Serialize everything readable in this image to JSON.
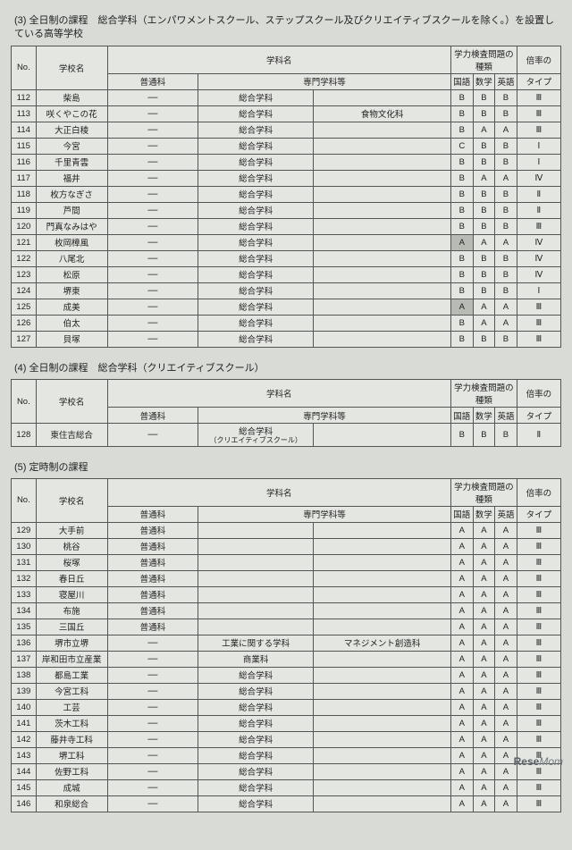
{
  "sections": [
    {
      "title": "(3) 全日制の課程　総合学科（エンパワメントスクール、ステップスクール及びクリエイティブスクールを除く。）を設置している高等学校",
      "rows": [
        {
          "no": "112",
          "school": "柴島",
          "futsu": "—",
          "gakka": "総合学科",
          "senmon": "",
          "j": "B",
          "m": "B",
          "e": "B",
          "t": "Ⅲ"
        },
        {
          "no": "113",
          "school": "咲くやこの花",
          "futsu": "—",
          "gakka": "総合学科",
          "senmon": "食物文化科",
          "j": "B",
          "m": "B",
          "e": "B",
          "t": "Ⅲ"
        },
        {
          "no": "114",
          "school": "大正白稜",
          "futsu": "—",
          "gakka": "総合学科",
          "senmon": "",
          "j": "B",
          "m": "A",
          "e": "A",
          "t": "Ⅲ"
        },
        {
          "no": "115",
          "school": "今宮",
          "futsu": "—",
          "gakka": "総合学科",
          "senmon": "",
          "j": "C",
          "m": "B",
          "e": "B",
          "t": "Ⅰ"
        },
        {
          "no": "116",
          "school": "千里青雲",
          "futsu": "—",
          "gakka": "総合学科",
          "senmon": "",
          "j": "B",
          "m": "B",
          "e": "B",
          "t": "Ⅰ"
        },
        {
          "no": "117",
          "school": "福井",
          "futsu": "—",
          "gakka": "総合学科",
          "senmon": "",
          "j": "B",
          "m": "A",
          "e": "A",
          "t": "Ⅳ"
        },
        {
          "no": "118",
          "school": "枚方なぎさ",
          "futsu": "—",
          "gakka": "総合学科",
          "senmon": "",
          "j": "B",
          "m": "B",
          "e": "B",
          "t": "Ⅱ"
        },
        {
          "no": "119",
          "school": "芦間",
          "futsu": "—",
          "gakka": "総合学科",
          "senmon": "",
          "j": "B",
          "m": "B",
          "e": "B",
          "t": "Ⅱ"
        },
        {
          "no": "120",
          "school": "門真なみはや",
          "futsu": "—",
          "gakka": "総合学科",
          "senmon": "",
          "j": "B",
          "m": "B",
          "e": "B",
          "t": "Ⅲ"
        },
        {
          "no": "121",
          "school": "枚岡樟風",
          "futsu": "—",
          "gakka": "総合学科",
          "senmon": "",
          "j": "A",
          "m": "A",
          "e": "A",
          "t": "Ⅳ",
          "shade": [
            "j"
          ]
        },
        {
          "no": "122",
          "school": "八尾北",
          "futsu": "—",
          "gakka": "総合学科",
          "senmon": "",
          "j": "B",
          "m": "B",
          "e": "B",
          "t": "Ⅳ"
        },
        {
          "no": "123",
          "school": "松原",
          "futsu": "—",
          "gakka": "総合学科",
          "senmon": "",
          "j": "B",
          "m": "B",
          "e": "B",
          "t": "Ⅳ"
        },
        {
          "no": "124",
          "school": "堺東",
          "futsu": "—",
          "gakka": "総合学科",
          "senmon": "",
          "j": "B",
          "m": "B",
          "e": "B",
          "t": "Ⅰ"
        },
        {
          "no": "125",
          "school": "成美",
          "futsu": "—",
          "gakka": "総合学科",
          "senmon": "",
          "j": "A",
          "m": "A",
          "e": "A",
          "t": "Ⅲ",
          "shade": [
            "j"
          ]
        },
        {
          "no": "126",
          "school": "伯太",
          "futsu": "—",
          "gakka": "総合学科",
          "senmon": "",
          "j": "B",
          "m": "A",
          "e": "A",
          "t": "Ⅲ"
        },
        {
          "no": "127",
          "school": "貝塚",
          "futsu": "—",
          "gakka": "総合学科",
          "senmon": "",
          "j": "B",
          "m": "B",
          "e": "B",
          "t": "Ⅲ"
        }
      ]
    },
    {
      "title": "(4) 全日制の課程　総合学科（クリエイティブスクール）",
      "rows": [
        {
          "no": "128",
          "school": "東住吉総合",
          "futsu": "—",
          "gakka": "総合学科",
          "sub": "（クリエイティブスクール）",
          "senmon": "",
          "j": "B",
          "m": "B",
          "e": "B",
          "t": "Ⅱ"
        }
      ]
    },
    {
      "title": "(5) 定時制の課程",
      "rows": [
        {
          "no": "129",
          "school": "大手前",
          "futsu": "普通科",
          "gakka": "",
          "senmon": "",
          "j": "A",
          "m": "A",
          "e": "A",
          "t": "Ⅲ"
        },
        {
          "no": "130",
          "school": "桃谷",
          "futsu": "普通科",
          "gakka": "",
          "senmon": "",
          "j": "A",
          "m": "A",
          "e": "A",
          "t": "Ⅲ"
        },
        {
          "no": "131",
          "school": "桜塚",
          "futsu": "普通科",
          "gakka": "",
          "senmon": "",
          "j": "A",
          "m": "A",
          "e": "A",
          "t": "Ⅲ"
        },
        {
          "no": "132",
          "school": "春日丘",
          "futsu": "普通科",
          "gakka": "",
          "senmon": "",
          "j": "A",
          "m": "A",
          "e": "A",
          "t": "Ⅲ"
        },
        {
          "no": "133",
          "school": "寝屋川",
          "futsu": "普通科",
          "gakka": "",
          "senmon": "",
          "j": "A",
          "m": "A",
          "e": "A",
          "t": "Ⅲ"
        },
        {
          "no": "134",
          "school": "布施",
          "futsu": "普通科",
          "gakka": "",
          "senmon": "",
          "j": "A",
          "m": "A",
          "e": "A",
          "t": "Ⅲ"
        },
        {
          "no": "135",
          "school": "三国丘",
          "futsu": "普通科",
          "gakka": "",
          "senmon": "",
          "j": "A",
          "m": "A",
          "e": "A",
          "t": "Ⅲ"
        },
        {
          "no": "136",
          "school": "堺市立堺",
          "futsu": "—",
          "gakka": "工業に関する学科",
          "senmon": "マネジメント創造科",
          "j": "A",
          "m": "A",
          "e": "A",
          "t": "Ⅲ"
        },
        {
          "no": "137",
          "school": "岸和田市立産業",
          "futsu": "—",
          "gakka": "商業科",
          "senmon": "",
          "j": "A",
          "m": "A",
          "e": "A",
          "t": "Ⅲ"
        },
        {
          "no": "138",
          "school": "都島工業",
          "futsu": "—",
          "gakka": "総合学科",
          "senmon": "",
          "j": "A",
          "m": "A",
          "e": "A",
          "t": "Ⅲ"
        },
        {
          "no": "139",
          "school": "今宮工科",
          "futsu": "—",
          "gakka": "総合学科",
          "senmon": "",
          "j": "A",
          "m": "A",
          "e": "A",
          "t": "Ⅲ"
        },
        {
          "no": "140",
          "school": "工芸",
          "futsu": "—",
          "gakka": "総合学科",
          "senmon": "",
          "j": "A",
          "m": "A",
          "e": "A",
          "t": "Ⅲ"
        },
        {
          "no": "141",
          "school": "茨木工科",
          "futsu": "—",
          "gakka": "総合学科",
          "senmon": "",
          "j": "A",
          "m": "A",
          "e": "A",
          "t": "Ⅲ"
        },
        {
          "no": "142",
          "school": "藤井寺工科",
          "futsu": "—",
          "gakka": "総合学科",
          "senmon": "",
          "j": "A",
          "m": "A",
          "e": "A",
          "t": "Ⅲ"
        },
        {
          "no": "143",
          "school": "堺工科",
          "futsu": "—",
          "gakka": "総合学科",
          "senmon": "",
          "j": "A",
          "m": "A",
          "e": "A",
          "t": "Ⅲ"
        },
        {
          "no": "144",
          "school": "佐野工科",
          "futsu": "—",
          "gakka": "総合学科",
          "senmon": "",
          "j": "A",
          "m": "A",
          "e": "A",
          "t": "Ⅲ"
        },
        {
          "no": "145",
          "school": "成城",
          "futsu": "—",
          "gakka": "総合学科",
          "senmon": "",
          "j": "A",
          "m": "A",
          "e": "A",
          "t": "Ⅲ"
        },
        {
          "no": "146",
          "school": "和泉総合",
          "futsu": "—",
          "gakka": "総合学科",
          "senmon": "",
          "j": "A",
          "m": "A",
          "e": "A",
          "t": "Ⅲ"
        }
      ]
    }
  ],
  "headers": {
    "no": "No.",
    "school": "学校名",
    "gakka_group": "学科名",
    "futsu": "普通科",
    "senmon": "専門学科等",
    "exam_group": "学力検査問題の種類",
    "j": "国語",
    "m": "数学",
    "e": "英語",
    "ratio": "倍率の",
    "type": "タイプ"
  },
  "layout": {
    "col_widths_pct": [
      4.5,
      13,
      16.5,
      21,
      25,
      4,
      4,
      4,
      8
    ],
    "border_color": "#555555",
    "bg": "#d8dbd6",
    "table_bg": "#e4e6e1",
    "shade_bg": "#b8bab4",
    "font_size_pt": 9.5
  },
  "watermark": {
    "brand": "Rese",
    "suffix": "Mom"
  }
}
